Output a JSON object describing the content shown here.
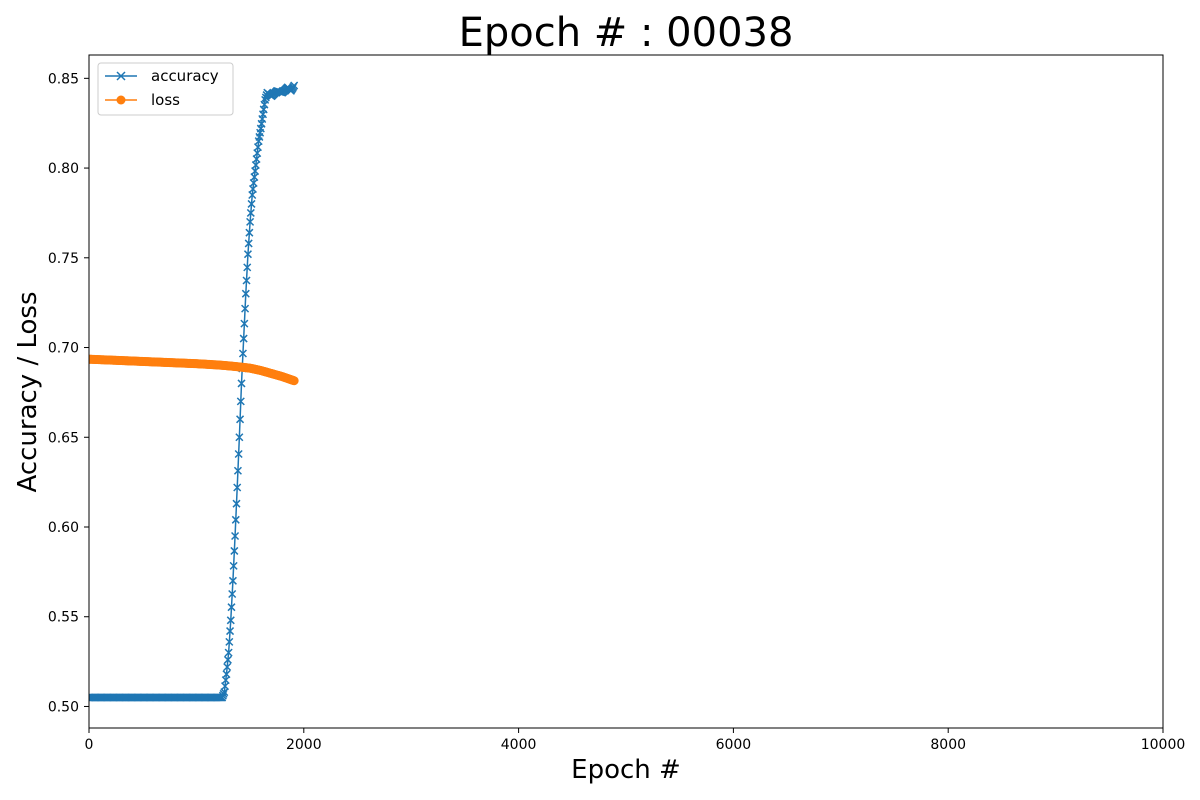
{
  "chart_data": {
    "type": "line",
    "title": "Epoch # : 00038",
    "xlabel": "Epoch #",
    "ylabel": "Accuracy / Loss",
    "xlim": [
      0,
      10000
    ],
    "ylim": [
      0.488,
      0.863
    ],
    "xticks": [
      0,
      2000,
      4000,
      6000,
      8000,
      10000
    ],
    "xtick_labels": [
      "0",
      "2000",
      "4000",
      "6000",
      "8000",
      "10000"
    ],
    "yticks": [
      0.5,
      0.55,
      0.6,
      0.65,
      0.7,
      0.75,
      0.8,
      0.85
    ],
    "ytick_labels": [
      "0.50",
      "0.55",
      "0.60",
      "0.65",
      "0.70",
      "0.75",
      "0.80",
      "0.85"
    ],
    "grid": false,
    "legend_position": "top-left",
    "series": [
      {
        "name": "accuracy",
        "color": "#1f77b4",
        "marker": "x",
        "points": [
          [
            0,
            0.505
          ],
          [
            200,
            0.505
          ],
          [
            400,
            0.505
          ],
          [
            600,
            0.505
          ],
          [
            800,
            0.505
          ],
          [
            1000,
            0.505
          ],
          [
            1200,
            0.505
          ],
          [
            1240,
            0.505
          ],
          [
            1260,
            0.508
          ],
          [
            1280,
            0.518
          ],
          [
            1300,
            0.53
          ],
          [
            1320,
            0.548
          ],
          [
            1340,
            0.57
          ],
          [
            1360,
            0.595
          ],
          [
            1380,
            0.622
          ],
          [
            1400,
            0.65
          ],
          [
            1420,
            0.68
          ],
          [
            1440,
            0.705
          ],
          [
            1460,
            0.73
          ],
          [
            1480,
            0.752
          ],
          [
            1500,
            0.77
          ],
          [
            1520,
            0.785
          ],
          [
            1540,
            0.795
          ],
          [
            1560,
            0.805
          ],
          [
            1580,
            0.815
          ],
          [
            1600,
            0.822
          ],
          [
            1620,
            0.83
          ],
          [
            1640,
            0.838
          ],
          [
            1660,
            0.842
          ],
          [
            1700,
            0.84
          ],
          [
            1750,
            0.843
          ],
          [
            1800,
            0.842
          ],
          [
            1850,
            0.845
          ],
          [
            1880,
            0.843
          ],
          [
            1910,
            0.846
          ]
        ]
      },
      {
        "name": "loss",
        "color": "#ff7f0e",
        "marker": "o",
        "points": [
          [
            0,
            0.6935
          ],
          [
            200,
            0.693
          ],
          [
            400,
            0.6925
          ],
          [
            600,
            0.692
          ],
          [
            800,
            0.6915
          ],
          [
            1000,
            0.691
          ],
          [
            1200,
            0.6903
          ],
          [
            1300,
            0.6898
          ],
          [
            1400,
            0.6892
          ],
          [
            1500,
            0.6885
          ],
          [
            1600,
            0.6872
          ],
          [
            1700,
            0.6855
          ],
          [
            1800,
            0.6838
          ],
          [
            1910,
            0.6815
          ]
        ]
      }
    ]
  }
}
